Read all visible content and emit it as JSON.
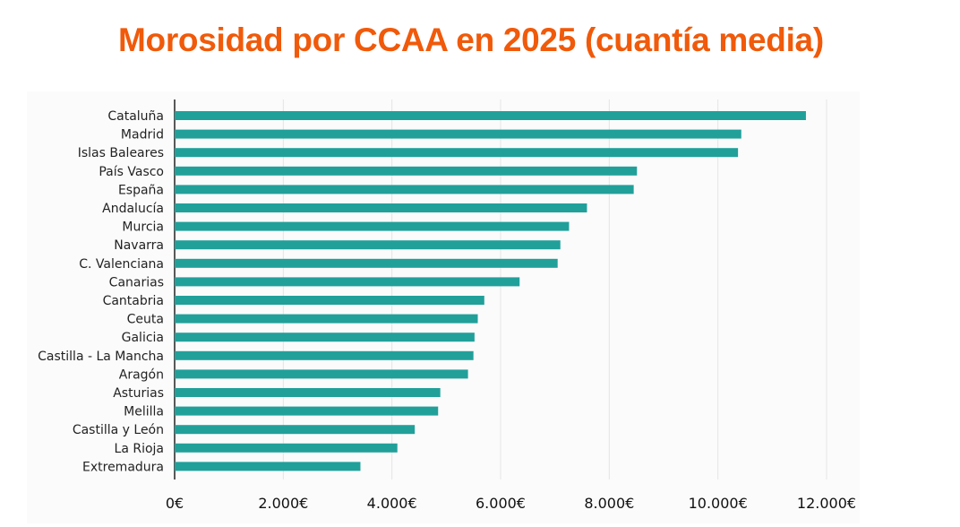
{
  "chart_data": {
    "type": "bar",
    "orientation": "horizontal",
    "title": "Morosidad por CCAA en 2025 (cuantía media)",
    "xlabel": "",
    "ylabel": "",
    "xlim": [
      0,
      12000
    ],
    "x_ticks": [
      0,
      2000,
      4000,
      6000,
      8000,
      10000,
      12000
    ],
    "x_tick_labels": [
      "0€",
      "2.000€",
      "4.000€",
      "6.000€",
      "8.000€",
      "10.000€",
      "12.000€"
    ],
    "grid": "vertical",
    "bar_color": "#21a09a",
    "categories": [
      "Cataluña",
      "Madrid",
      "Islas Baleares",
      "País Vasco",
      "España",
      "Andalucía",
      "Murcia",
      "Navarra",
      "C. Valenciana",
      "Canarias",
      "Cantabria",
      "Ceuta",
      "Galicia",
      "Castilla - La Mancha",
      "Aragón",
      "Asturias",
      "Melilla",
      "Castilla y León",
      "La Rioja",
      "Extremadura"
    ],
    "values": [
      11620,
      10430,
      10370,
      8510,
      8450,
      7590,
      7260,
      7100,
      7050,
      6350,
      5700,
      5580,
      5520,
      5500,
      5400,
      4890,
      4850,
      4420,
      4100,
      3420
    ]
  }
}
